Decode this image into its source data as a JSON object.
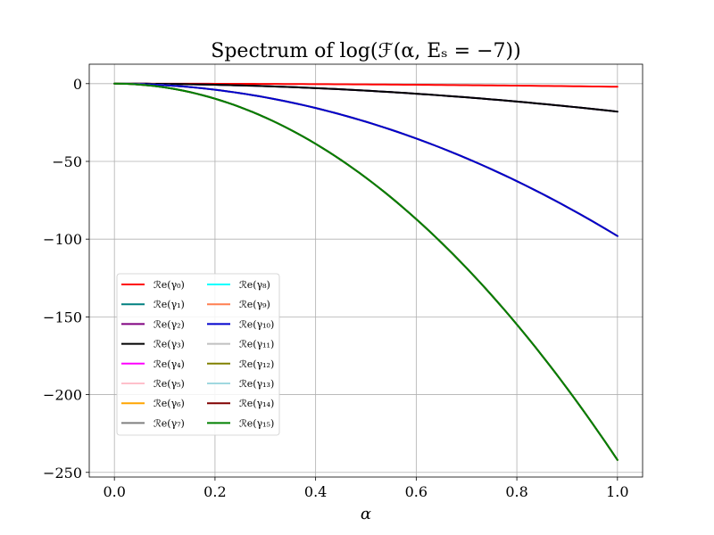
{
  "chart_data": {
    "type": "line",
    "title": "Spectrum of log(ℱ(α, Eₛ = −7))",
    "xlabel": "α",
    "ylabel": "",
    "xlim": [
      -0.05,
      1.05
    ],
    "ylim": [
      -253,
      12.5
    ],
    "grid": true,
    "legend_location": "lower-left",
    "xticks": [
      0.0,
      0.2,
      0.4,
      0.6,
      0.8,
      1.0
    ],
    "xtick_labels": [
      "0.0",
      "0.2",
      "0.4",
      "0.6",
      "0.8",
      "1.0"
    ],
    "yticks": [
      0,
      -50,
      -100,
      -150,
      -200,
      -250
    ],
    "ytick_labels": [
      "0",
      "−50",
      "−100",
      "−150",
      "−200",
      "−250"
    ],
    "x_range": [
      0,
      1
    ],
    "series": [
      {
        "name": "ℛe(γ₀)",
        "color": "#ff0000",
        "coef": -2
      },
      {
        "name": "ℛe(γ₁)",
        "color": "#008080",
        "coef": -18
      },
      {
        "name": "ℛe(γ₂)",
        "color": "#800080",
        "coef": -18
      },
      {
        "name": "ℛe(γ₃)",
        "color": "#000000",
        "coef": -18
      },
      {
        "name": "ℛe(γ₄)",
        "color": "#ff00ff",
        "coef": -98
      },
      {
        "name": "ℛe(γ₅)",
        "color": "#ffc0cb",
        "coef": -98
      },
      {
        "name": "ℛe(γ₆)",
        "color": "#ffa500",
        "coef": -98
      },
      {
        "name": "ℛe(γ₇)",
        "color": "#808080",
        "coef": -98
      },
      {
        "name": "ℛe(γ₈)",
        "color": "#00ffff",
        "coef": -98
      },
      {
        "name": "ℛe(γ₉)",
        "color": "#ff7f50",
        "coef": -98
      },
      {
        "name": "ℛe(γ₁₀)",
        "color": "#0000cd",
        "coef": -98
      },
      {
        "name": "ℛe(γ₁₁)",
        "color": "#c0c0c0",
        "coef": -242
      },
      {
        "name": "ℛe(γ₁₂)",
        "color": "#808000",
        "coef": -242
      },
      {
        "name": "ℛe(γ₁₃)",
        "color": "#a0d8e0",
        "coef": -242
      },
      {
        "name": "ℛe(γ₁₄)",
        "color": "#800000",
        "coef": -242
      },
      {
        "name": "ℛe(γ₁₅)",
        "color": "#008000",
        "coef": -242
      }
    ],
    "curve": "y = coef * alpha^2"
  }
}
